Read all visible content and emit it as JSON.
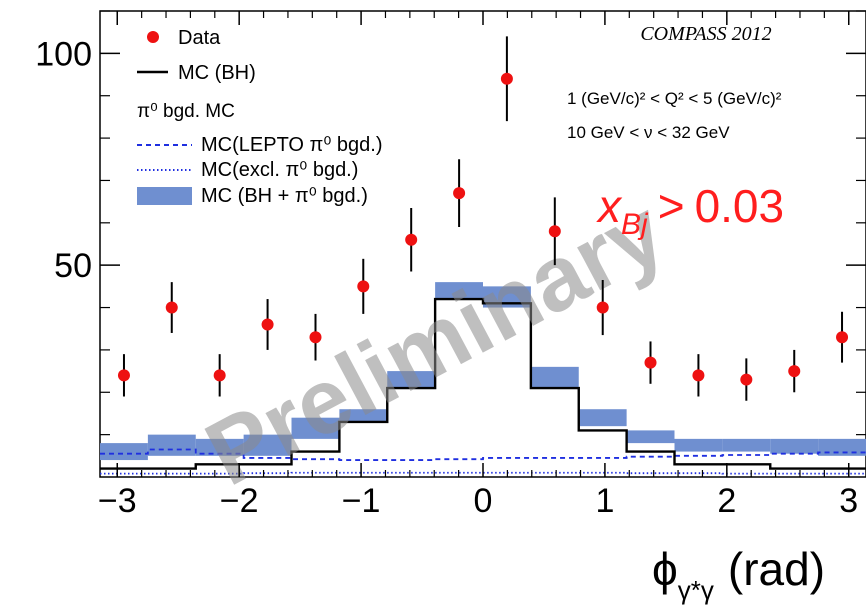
{
  "chart_data": {
    "type": "scatter",
    "title": "",
    "experiment_label": "COMPASS 2012",
    "kinematics": [
      "1 (GeV/c)² < Q² < 5 (GeV/c)²",
      "10 GeV < ν < 32 GeV"
    ],
    "xbj_cut": {
      "symbol": "x",
      "subscript": "Bj",
      "relation": ">",
      "value": "0.03"
    },
    "watermark": "Preliminary",
    "xlabel": "ϕ",
    "xlabel_subscript": "γ*γ",
    "xlabel_unit": "(rad)",
    "ylabel": "",
    "xlim": [
      -3.14159,
      3.14159
    ],
    "ylim": [
      0,
      110
    ],
    "xticks": [
      -3,
      -2,
      -1,
      0,
      1,
      2,
      3
    ],
    "xtick_labels": [
      "−3",
      "−2",
      "−1",
      "0",
      "1",
      "2",
      "3"
    ],
    "yticks": [
      50,
      100
    ],
    "ytick_labels": [
      "50",
      "100"
    ],
    "grid": false,
    "legend_position": "top-left",
    "bin_edges": [
      -3.14159,
      -2.74889,
      -2.35619,
      -1.9635,
      -1.5708,
      -1.1781,
      -0.7854,
      -0.3927,
      0,
      0.3927,
      0.7854,
      1.1781,
      1.5708,
      1.9635,
      2.35619,
      2.74889,
      3.14159
    ],
    "series": [
      {
        "name": "Data",
        "kind": "points",
        "color": "#ee1111",
        "x": [
          -2.945,
          -2.553,
          -2.16,
          -1.767,
          -1.374,
          -0.982,
          -0.589,
          -0.196,
          0.196,
          0.589,
          0.982,
          1.374,
          1.767,
          2.16,
          2.553,
          2.945
        ],
        "y": [
          24,
          40,
          24,
          36,
          33,
          45,
          56,
          67,
          94,
          58,
          40,
          27,
          24,
          23,
          25,
          33
        ],
        "yerr": [
          5,
          6,
          5,
          6,
          5.5,
          6.5,
          7.5,
          8,
          10,
          8,
          6.5,
          5,
          5,
          5,
          5,
          6
        ]
      },
      {
        "name": "MC (BH)",
        "kind": "step",
        "color": "#000000",
        "y": [
          2,
          2,
          3,
          3,
          6,
          13,
          21,
          42,
          41,
          21,
          11,
          6,
          3,
          3,
          2,
          2
        ]
      },
      {
        "name": "MC(LEPTO π⁰ bgd.)",
        "kind": "step-dashed",
        "color": "#1f2fe0",
        "y": [
          5.5,
          6.5,
          5.5,
          4.5,
          4.2,
          4.0,
          4.0,
          4.2,
          4.5,
          4.5,
          4.5,
          4.8,
          5.0,
          5.2,
          5.5,
          5.8
        ]
      },
      {
        "name": "MC(excl. π⁰ bgd.)",
        "kind": "step-dotted",
        "color": "#1f2fe0",
        "y": [
          0.8,
          0.8,
          0.8,
          0.9,
          1.0,
          1.0,
          1.0,
          1.0,
          1.0,
          1.0,
          1.0,
          0.9,
          0.9,
          0.8,
          0.8,
          0.8
        ]
      },
      {
        "name": "MC (BH + π⁰ bgd.)",
        "kind": "band",
        "color": "#6f8fd0",
        "low": [
          4,
          5,
          5,
          5,
          9,
          13,
          21,
          42,
          40,
          21,
          12,
          8,
          6,
          6,
          5.5,
          5
        ],
        "high": [
          8,
          10,
          9,
          10,
          14,
          16,
          25,
          46,
          45,
          26,
          16,
          11,
          9,
          9,
          9,
          9
        ]
      }
    ],
    "legend_header": "π⁰ bgd. MC"
  }
}
